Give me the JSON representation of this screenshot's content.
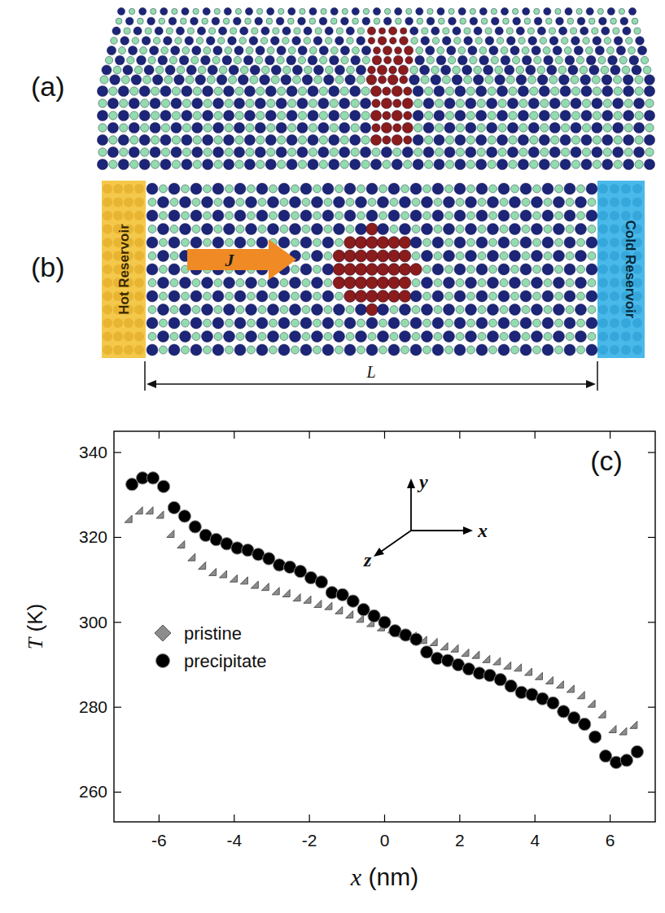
{
  "chart_data": {
    "type": "scatter",
    "xlabel": "x (nm)",
    "ylabel": "T (K)",
    "xlim": [
      -7.2,
      7.2
    ],
    "ylim": [
      253,
      345
    ],
    "xticks": [
      -6,
      -4,
      -2,
      0,
      2,
      4,
      6
    ],
    "yticks": [
      260,
      280,
      300,
      320,
      340
    ],
    "grid": false,
    "legend": "left",
    "annotations": [
      "x",
      "y",
      "z"
    ],
    "x": [
      -6.72,
      -6.44,
      -6.16,
      -5.88,
      -5.6,
      -5.32,
      -5.04,
      -4.76,
      -4.48,
      -4.2,
      -3.92,
      -3.64,
      -3.36,
      -3.08,
      -2.8,
      -2.52,
      -2.24,
      -1.96,
      -1.68,
      -1.4,
      -1.12,
      -0.84,
      -0.56,
      -0.28,
      0,
      0.28,
      0.56,
      0.84,
      1.12,
      1.4,
      1.68,
      1.96,
      2.24,
      2.52,
      2.8,
      3.08,
      3.36,
      3.64,
      3.92,
      4.2,
      4.48,
      4.76,
      5.04,
      5.32,
      5.6,
      5.88,
      6.16,
      6.44,
      6.72
    ],
    "series": [
      {
        "name": "pristine",
        "color": "#8c8c8c",
        "marker": "diamond",
        "values": [
          323.5,
          325.5,
          325.5,
          324.5,
          320,
          317.5,
          314.5,
          312.5,
          311,
          310.5,
          309.5,
          309,
          308,
          307.5,
          306.5,
          306,
          305,
          304.5,
          303.5,
          303,
          302,
          301,
          300,
          299,
          298,
          297.5,
          296.5,
          296,
          295,
          294.5,
          293.5,
          293,
          292,
          291.5,
          290.5,
          290,
          289,
          288.5,
          287.5,
          286.5,
          285.5,
          284.5,
          283.5,
          282,
          280,
          277.5,
          274,
          273.5,
          275
        ]
      },
      {
        "name": "precipitate",
        "color": "#000000",
        "marker": "circle",
        "values": [
          332.5,
          334,
          334,
          332,
          327,
          325,
          322.5,
          320.5,
          319.5,
          318.5,
          317.5,
          317,
          316,
          315,
          313.5,
          313,
          312,
          310.5,
          309.5,
          307,
          306.5,
          305,
          303,
          301.5,
          300,
          298,
          297,
          296,
          293,
          291.5,
          291,
          290,
          289,
          288,
          287.5,
          286.5,
          285,
          283.5,
          283,
          282,
          281,
          279,
          277.5,
          276,
          273,
          268.5,
          267,
          267.5,
          269.5
        ]
      }
    ]
  },
  "figure": {
    "panels": [
      "(a)",
      "(b)",
      "(c)"
    ],
    "diagram": {
      "hot_reservoir": "Hot Reservoir",
      "cold_reservoir": "Cold Reservoir",
      "flux": "J",
      "length": "L"
    }
  }
}
